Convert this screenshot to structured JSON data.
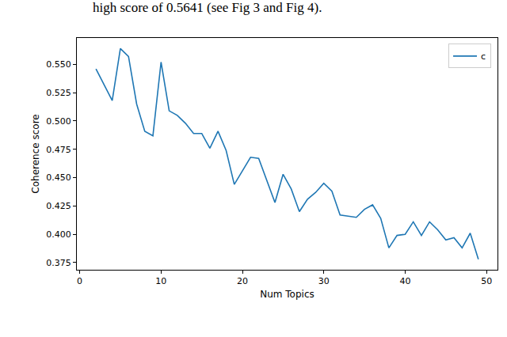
{
  "chart_data": {
    "type": "line",
    "annotations": [
      "high score of 0.5641 (see Fig 3 and Fig 4)."
    ],
    "x_label": "Num Topics",
    "y_label": "Coherence score",
    "x": [
      2,
      3,
      4,
      5,
      6,
      7,
      8,
      9,
      10,
      11,
      12,
      13,
      14,
      15,
      16,
      17,
      18,
      19,
      20,
      21,
      22,
      23,
      24,
      25,
      26,
      27,
      28,
      29,
      30,
      31,
      32,
      33,
      34,
      35,
      36,
      37,
      38,
      39,
      40,
      41,
      42,
      43,
      44,
      45,
      46,
      47,
      48,
      49
    ],
    "series": [
      {
        "name": "c",
        "color": "#1f77b4",
        "values": [
          0.546,
          0.532,
          0.518,
          0.564,
          0.557,
          0.515,
          0.491,
          0.487,
          0.552,
          0.509,
          0.505,
          0.498,
          0.489,
          0.489,
          0.476,
          0.491,
          0.474,
          0.444,
          0.456,
          0.468,
          0.467,
          0.448,
          0.428,
          0.453,
          0.44,
          0.42,
          0.431,
          0.437,
          0.445,
          0.438,
          0.417,
          0.416,
          0.415,
          0.422,
          0.426,
          0.414,
          0.388,
          0.399,
          0.4,
          0.411,
          0.399,
          0.411,
          0.404,
          0.395,
          0.397,
          0.388,
          0.401,
          0.378
        ]
      }
    ],
    "xlim": [
      -0.35,
      51.35
    ],
    "xticks": [
      0,
      10,
      20,
      30,
      40,
      50
    ],
    "ylim": [
      0.3687,
      0.5733
    ],
    "yticks": [
      0.375,
      {
        "value": 0.4,
        "label": "0.400"
      },
      0.425,
      {
        "value": 0.45,
        "label": "0.450"
      },
      0.475,
      {
        "value": 0.5,
        "label": "0.500"
      },
      0.525,
      {
        "value": 0.55,
        "label": "0.550"
      }
    ],
    "grid": false,
    "legend": "upper right"
  }
}
